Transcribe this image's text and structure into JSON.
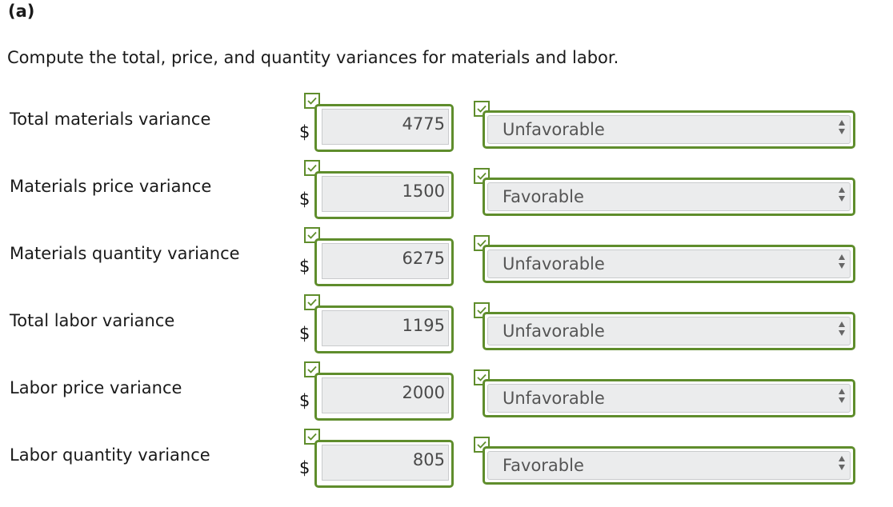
{
  "part_label": "(a)",
  "question": "Compute the total, price, and quantity variances for materials and labor.",
  "currency_symbol": "$",
  "accent_color": "#5f8d2c",
  "rows": [
    {
      "label": "Total materials variance",
      "amount": "4775",
      "selection": "Unfavorable"
    },
    {
      "label": "Materials price variance",
      "amount": "1500",
      "selection": "Favorable"
    },
    {
      "label": "Materials quantity variance",
      "amount": "6275",
      "selection": "Unfavorable"
    },
    {
      "label": "Total labor variance",
      "amount": "1195",
      "selection": "Unfavorable"
    },
    {
      "label": "Labor price variance",
      "amount": "2000",
      "selection": "Unfavorable"
    },
    {
      "label": "Labor quantity variance",
      "amount": "805",
      "selection": "Favorable"
    }
  ]
}
